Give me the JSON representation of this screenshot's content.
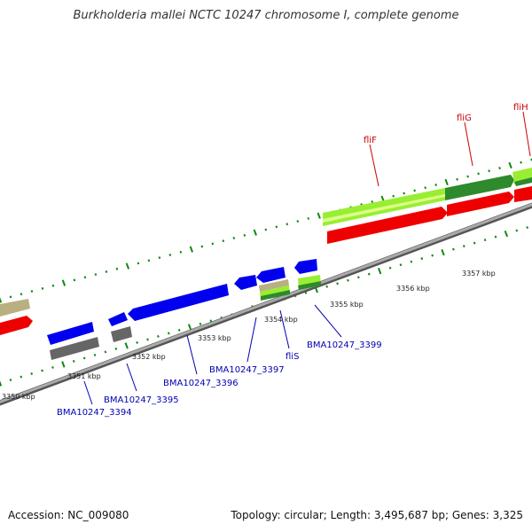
{
  "title": "Burkholderia mallei NCTC 10247 chromosome I, complete genome",
  "footer": {
    "accession": "Accession: NC_009080",
    "summary": "Topology: circular; Length: 3,495,687 bp; Genes: 3,325"
  },
  "colors": {
    "backbone": "#888888",
    "forward_cds": "#ff0000",
    "reverse_cds": "#0000ee",
    "gene_green": "#2d8a2d",
    "gene_lime": "#99ee33",
    "gene_khaki": "#b8b080",
    "gene_gray": "#666666",
    "tick": "#118811",
    "label_blue": "#0000b0",
    "label_red": "#cc0000"
  },
  "kbp_labels": [
    "3350 kbp",
    "3351 kbp",
    "3352 kbp",
    "3353 kbp",
    "3354 kbp",
    "3355 kbp",
    "3356 kbp",
    "3357 kbp"
  ],
  "gene_labels": [
    {
      "text": "BMA10247_3394",
      "color": "blue"
    },
    {
      "text": "BMA10247_3395",
      "color": "blue"
    },
    {
      "text": "BMA10247_3396",
      "color": "blue"
    },
    {
      "text": "BMA10247_3397",
      "color": "blue"
    },
    {
      "text": "fliS",
      "color": "blue"
    },
    {
      "text": "BMA10247_3399",
      "color": "blue"
    },
    {
      "text": "fliF",
      "color": "red"
    },
    {
      "text": "fliG",
      "color": "red"
    },
    {
      "text": "fliH",
      "color": "red"
    }
  ]
}
